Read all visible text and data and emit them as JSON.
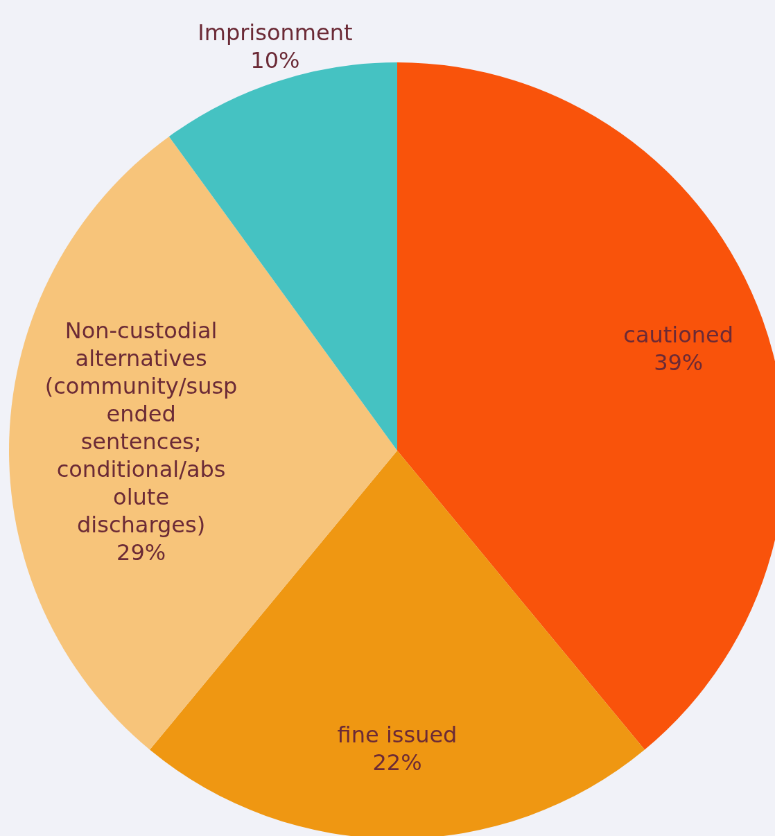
{
  "chart_data": {
    "type": "pie",
    "categories": [
      "cautioned",
      "fine issued",
      "Non-custodial alternatives (community/suspended sentences; conditional/absolute discharges)",
      "Imprisonment"
    ],
    "values": [
      39,
      22,
      29,
      10
    ],
    "colors": [
      "#f9530b",
      "#ef9712",
      "#f7c47a",
      "#45c2c2"
    ],
    "value_labels": [
      "39%",
      "22%",
      "29%",
      "10%"
    ]
  }
}
